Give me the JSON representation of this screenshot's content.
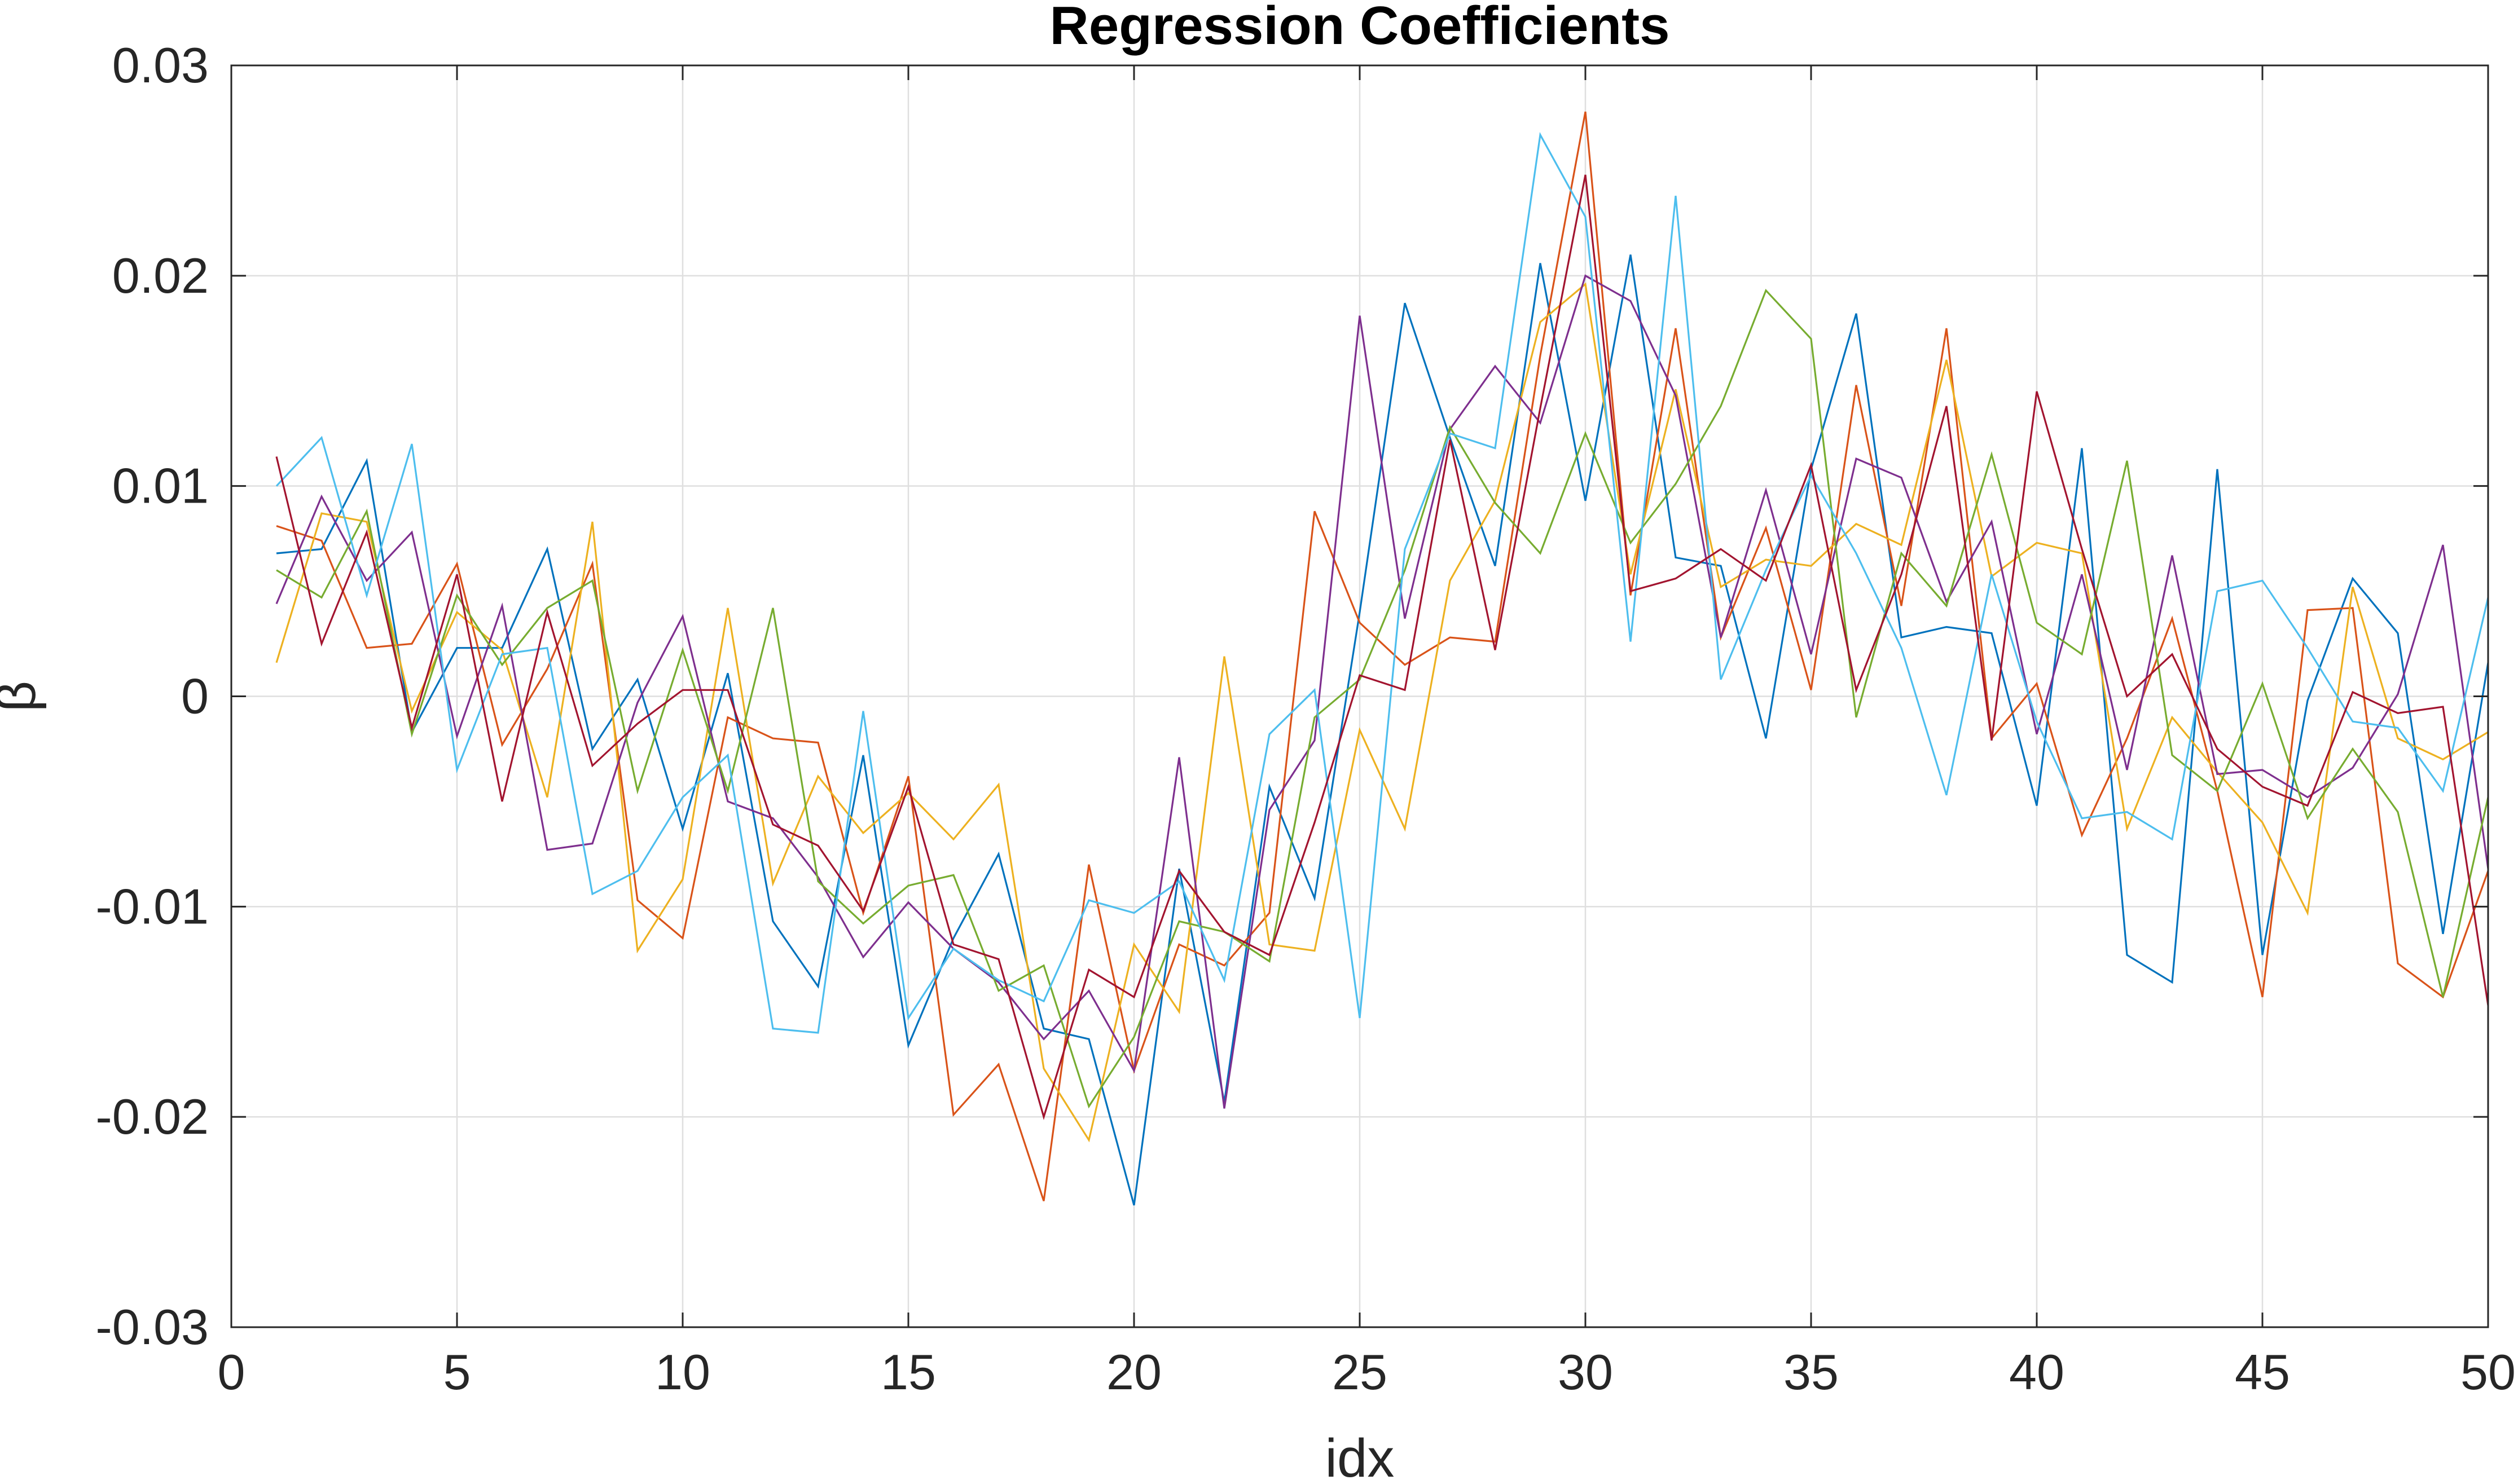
{
  "chart_data": {
    "type": "line",
    "title": "Regression Coefficients",
    "xlabel": "idx",
    "ylabel": "β",
    "xlim": [
      0,
      50
    ],
    "ylim": [
      -0.03,
      0.03
    ],
    "xticks": [
      0,
      5,
      10,
      15,
      20,
      25,
      30,
      35,
      40,
      45,
      50
    ],
    "xtick_labels": [
      "0",
      "5",
      "10",
      "15",
      "20",
      "25",
      "30",
      "35",
      "40",
      "45",
      "50"
    ],
    "yticks": [
      -0.03,
      -0.02,
      -0.01,
      0,
      0.01,
      0.02,
      0.03
    ],
    "ytick_labels": [
      "-0.03",
      "-0.02",
      "-0.01",
      "0",
      "0.01",
      "0.02",
      "0.03"
    ],
    "grid": true,
    "legend": "none",
    "x": [
      1,
      2,
      3,
      4,
      5,
      6,
      7,
      8,
      9,
      10,
      11,
      12,
      13,
      14,
      15,
      16,
      17,
      18,
      19,
      20,
      21,
      22,
      23,
      24,
      25,
      26,
      27,
      28,
      29,
      30,
      31,
      32,
      33,
      34,
      35,
      36,
      37,
      38,
      39,
      40,
      41,
      42,
      43,
      44,
      45,
      46,
      47,
      48,
      49,
      50
    ],
    "series": [
      {
        "color": "#0072BD",
        "values": [
          0.0068,
          0.007,
          0.0112,
          -0.0017,
          0.0023,
          0.0023,
          0.007,
          -0.0025,
          0.0008,
          -0.0063,
          0.0011,
          -0.0107,
          -0.0138,
          -0.0028,
          -0.0166,
          -0.0115,
          -0.0075,
          -0.0158,
          -0.0163,
          -0.0242,
          -0.0082,
          -0.0193,
          -0.0043,
          -0.0096,
          0.004,
          0.0187,
          0.0123,
          0.0062,
          0.0206,
          0.0093,
          0.021,
          0.0066,
          0.0062,
          -0.002,
          0.0108,
          0.0182,
          0.0028,
          0.0033,
          0.003,
          -0.0052,
          0.0118,
          -0.0123,
          -0.0136,
          0.0108,
          -0.0123,
          -0.0002,
          0.0056,
          0.003,
          -0.0113,
          0.0016
        ]
      },
      {
        "color": "#D95319",
        "values": [
          0.0081,
          0.0074,
          0.0023,
          0.0025,
          0.0063,
          -0.0023,
          0.0013,
          0.0063,
          -0.0097,
          -0.0115,
          -0.001,
          -0.002,
          -0.0022,
          -0.0103,
          -0.0038,
          -0.0199,
          -0.0175,
          -0.024,
          -0.008,
          -0.0178,
          -0.0118,
          -0.0128,
          -0.0103,
          0.0088,
          0.0035,
          0.0015,
          0.0028,
          0.0026,
          0.0162,
          0.0278,
          0.0048,
          0.0175,
          0.0028,
          0.008,
          0.0003,
          0.0148,
          0.0043,
          0.0175,
          -0.002,
          0.0006,
          -0.0066,
          -0.002,
          0.0037,
          -0.0045,
          -0.0143,
          0.0041,
          0.0042,
          -0.0127,
          -0.0143,
          -0.0083
        ]
      },
      {
        "color": "#EDB120",
        "values": [
          0.0016,
          0.0087,
          0.0083,
          -0.0007,
          0.004,
          0.0022,
          -0.0048,
          0.0083,
          -0.0121,
          -0.0087,
          0.0042,
          -0.0089,
          -0.0038,
          -0.0065,
          -0.0046,
          -0.0068,
          -0.0042,
          -0.0177,
          -0.0211,
          -0.0118,
          -0.015,
          0.0019,
          -0.0118,
          -0.0121,
          -0.0016,
          -0.0063,
          0.0055,
          0.0093,
          0.0178,
          0.0196,
          0.0058,
          0.0146,
          0.0052,
          0.0065,
          0.0062,
          0.0082,
          0.0072,
          0.016,
          0.0057,
          0.0073,
          0.0068,
          -0.0063,
          -0.001,
          -0.0036,
          -0.006,
          -0.0103,
          0.0052,
          -0.002,
          -0.003,
          -0.0017
        ]
      },
      {
        "color": "#7E2F8E",
        "values": [
          0.0044,
          0.0095,
          0.0055,
          0.0078,
          -0.0019,
          0.0043,
          -0.0073,
          -0.007,
          -0.0003,
          0.0038,
          -0.005,
          -0.0058,
          -0.0086,
          -0.0124,
          -0.0098,
          -0.012,
          -0.0136,
          -0.0163,
          -0.014,
          -0.0178,
          -0.0029,
          -0.0196,
          -0.0054,
          -0.0021,
          0.0181,
          0.0037,
          0.0127,
          0.0157,
          0.013,
          0.02,
          0.0188,
          0.0143,
          0.0028,
          0.0098,
          0.002,
          0.0113,
          0.0104,
          0.0045,
          0.0083,
          -0.0018,
          0.0058,
          -0.0035,
          0.0067,
          -0.0037,
          -0.0035,
          -0.0048,
          -0.0034,
          0.0001,
          0.0072,
          -0.0082
        ]
      },
      {
        "color": "#77AC30",
        "values": [
          0.006,
          0.0047,
          0.0088,
          -0.0018,
          0.0048,
          0.0015,
          0.0042,
          0.0055,
          -0.0045,
          0.0022,
          -0.0045,
          0.0042,
          -0.0088,
          -0.0108,
          -0.009,
          -0.0085,
          -0.014,
          -0.0128,
          -0.0195,
          -0.0162,
          -0.0107,
          -0.0112,
          -0.0126,
          -0.001,
          0.0008,
          0.006,
          0.0128,
          0.0092,
          0.0068,
          0.0125,
          0.0073,
          0.0101,
          0.0138,
          0.0193,
          0.017,
          -0.001,
          0.0068,
          0.0043,
          0.0115,
          0.0035,
          0.002,
          0.0112,
          -0.0028,
          -0.0045,
          0.0006,
          -0.0058,
          -0.0025,
          -0.0055,
          -0.0143,
          -0.0048
        ]
      },
      {
        "color": "#4DBEEE",
        "values": [
          0.01,
          0.0123,
          0.0048,
          0.012,
          -0.0035,
          0.002,
          0.0023,
          -0.0094,
          -0.0083,
          -0.0048,
          -0.0028,
          -0.0158,
          -0.016,
          -0.0007,
          -0.0153,
          -0.012,
          -0.0135,
          -0.0145,
          -0.0097,
          -0.0103,
          -0.0088,
          -0.0135,
          -0.0018,
          0.0003,
          -0.0153,
          0.007,
          0.0125,
          0.0118,
          0.0267,
          0.0228,
          0.0026,
          0.0238,
          0.0008,
          0.006,
          0.0105,
          0.0068,
          0.0023,
          -0.0047,
          0.0058,
          -0.0012,
          -0.0058,
          -0.0055,
          -0.0068,
          0.005,
          0.0055,
          0.0023,
          -0.0012,
          -0.0015,
          -0.0045,
          0.0047
        ]
      },
      {
        "color": "#A2142F",
        "values": [
          0.0114,
          0.0025,
          0.0078,
          -0.0015,
          0.0058,
          -0.005,
          0.004,
          -0.0033,
          -0.0013,
          0.0003,
          0.0003,
          -0.0061,
          -0.0071,
          -0.0102,
          -0.0043,
          -0.0118,
          -0.0125,
          -0.02,
          -0.013,
          -0.0143,
          -0.0083,
          -0.0112,
          -0.0123,
          -0.006,
          0.001,
          0.0003,
          0.0122,
          0.0022,
          0.0137,
          0.0248,
          0.005,
          0.0056,
          0.007,
          0.0055,
          0.011,
          0.0003,
          0.0058,
          0.0138,
          -0.0021,
          0.0145,
          0.007,
          0.0,
          0.002,
          -0.0025,
          -0.0043,
          -0.0052,
          0.0002,
          -0.0008,
          -0.0005,
          -0.0147
        ]
      }
    ]
  }
}
